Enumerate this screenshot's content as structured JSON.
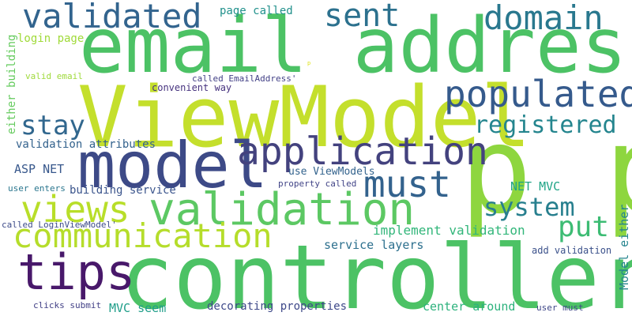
{
  "word_cloud": {
    "words": [
      {
        "text": "controller",
        "color": "#4cc265"
      },
      {
        "text": "email address",
        "color": "#4cc265"
      },
      {
        "text": "ViewModel",
        "color": "#c4df2c"
      },
      {
        "text": "p p",
        "color": "#8ed63f"
      },
      {
        "text": "model",
        "color": "#3d4a87"
      },
      {
        "text": "application",
        "color": "#43427e"
      },
      {
        "text": "validation",
        "color": "#5cc863"
      },
      {
        "text": "populated",
        "color": "#355a8c"
      },
      {
        "text": "communication",
        "color": "#b5dd2b"
      },
      {
        "text": "tips",
        "color": "#48186a"
      },
      {
        "text": "validated",
        "color": "#32648e"
      },
      {
        "text": "domain",
        "color": "#29788e"
      },
      {
        "text": "views",
        "color": "#b8de29"
      },
      {
        "text": "must",
        "color": "#33628d"
      },
      {
        "text": "sent",
        "color": "#2c718e"
      },
      {
        "text": "registered",
        "color": "#24858e"
      },
      {
        "text": "system",
        "color": "#277f8e"
      },
      {
        "text": "stay",
        "color": "#31678e"
      },
      {
        "text": "put",
        "color": "#3dbc74"
      },
      {
        "text": "validation attributes",
        "color": "#33628d"
      },
      {
        "text": "ASP NET",
        "color": "#38588c"
      },
      {
        "text": "building service",
        "color": "#3a548c"
      },
      {
        "text": "use ViewModels",
        "color": "#33638d"
      },
      {
        "text": "implement validation",
        "color": "#32b67a"
      },
      {
        "text": "service layers",
        "color": "#2d708e"
      },
      {
        "text": "NET MVC",
        "color": "#20a486"
      },
      {
        "text": "Model either",
        "color": "#25848e"
      },
      {
        "text": "center around",
        "color": "#2db27d"
      },
      {
        "text": "decorating properties",
        "color": "#3e4989"
      },
      {
        "text": "MVC seem",
        "color": "#1f9e89"
      },
      {
        "text": "add validation",
        "color": "#3b518b"
      },
      {
        "text": "page called",
        "color": "#21918c"
      },
      {
        "text": "login page",
        "color": "#a0da39"
      },
      {
        "text": "either building",
        "color": "#65cb5e"
      },
      {
        "text": "called EmailAddress'",
        "color": "#424086"
      },
      {
        "text": "convenient way",
        "color": "#46327e"
      },
      {
        "text": "valid email",
        "color": "#9fda3a"
      },
      {
        "text": "user enters",
        "color": "#2a768e"
      },
      {
        "text": "property called",
        "color": "#414487"
      },
      {
        "text": "called LoginViewModel'",
        "color": "#3e4c8a"
      },
      {
        "text": "clicks submit",
        "color": "#424086"
      },
      {
        "text": "user must",
        "color": "#3f4788"
      },
      {
        "text": "p",
        "color": "#dde318"
      }
    ]
  }
}
